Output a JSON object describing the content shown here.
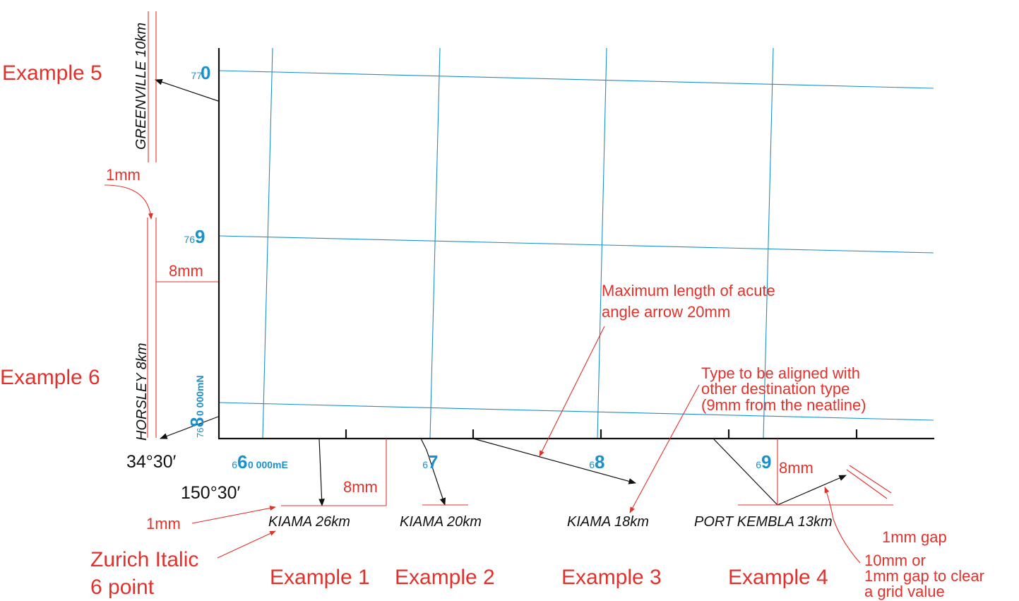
{
  "colors": {
    "annotation": "#e2312b",
    "grid": "#1e90c8",
    "neatline": "#111111",
    "text": "#111111"
  },
  "destinations": {
    "greenville": "GREENVILLE 10km",
    "horsley": "HORSLEY 8km",
    "kiama_26": "KIAMA 26km",
    "kiama_20": "KIAMA 20km",
    "kiama_18": "KIAMA 18km",
    "port_kembla": "PORT KEMBLA 13km"
  },
  "examples": {
    "ex1": "Example 1",
    "ex2": "Example 2",
    "ex3": "Example 3",
    "ex4": "Example 4",
    "ex5": "Example 5",
    "ex6": "Example 6"
  },
  "annotations": {
    "one_mm_top": "1mm",
    "eight_mm_left": "8mm",
    "eight_mm_bottom": "8mm",
    "eight_mm_right": "8mm",
    "one_mm_bottom": "1mm",
    "font_line1": "Zurich Italic",
    "font_line2": "6 point",
    "max_arrow_line1": "Maximum length of acute",
    "max_arrow_line2": "angle arrow 20mm",
    "align_line1": "Type to be aligned with",
    "align_line2": "other destination type",
    "align_line3": "(9mm from the neatline)",
    "gap": "1mm gap",
    "clear_line1": "10mm or",
    "clear_line2": "1mm gap to clear",
    "clear_line3": "a grid value"
  },
  "grid_labels": {
    "n770_small": "77",
    "n770_big": "0",
    "n769_small": "76",
    "n769_big": "9",
    "n768_small": "76",
    "n768_big": "8",
    "n768_suffix": "0 000mN",
    "e66_small": "6",
    "e66_big": "6",
    "e66_suffix": "0 000mE",
    "e67_small": "6",
    "e67_big": "7",
    "e68_small": "6",
    "e68_big": "8",
    "e69_small": "6",
    "e69_big": "9"
  },
  "coordinates": {
    "latitude": "34°30′",
    "longitude": "150°30′"
  }
}
